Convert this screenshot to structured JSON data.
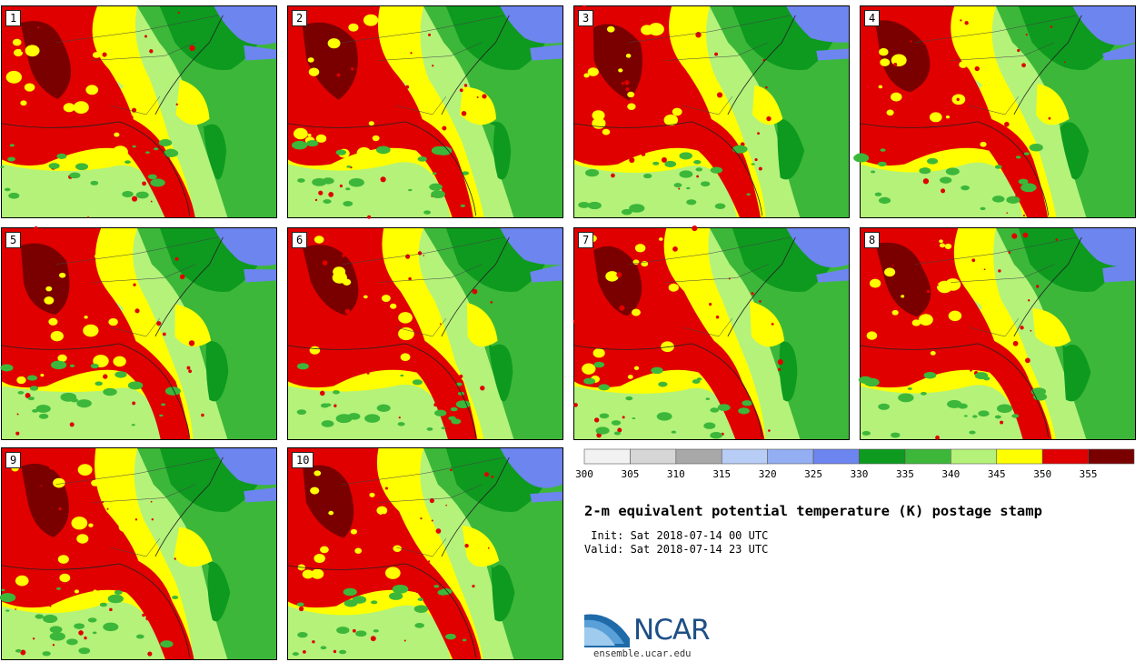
{
  "panels": [
    {
      "label": "1"
    },
    {
      "label": "2"
    },
    {
      "label": "3"
    },
    {
      "label": "4"
    },
    {
      "label": "5"
    },
    {
      "label": "6"
    },
    {
      "label": "7"
    },
    {
      "label": "8"
    },
    {
      "label": "9"
    },
    {
      "label": "10"
    }
  ],
  "colorbar": {
    "ticks": [
      "300",
      "305",
      "310",
      "315",
      "320",
      "325",
      "330",
      "335",
      "340",
      "345",
      "350",
      "355"
    ],
    "colors": [
      "#f2f2f2",
      "#d6d6d6",
      "#a8a8a8",
      "#b8cdf5",
      "#93aef2",
      "#6d85ee",
      "#0d9a1f",
      "#3cb73a",
      "#b4f27a",
      "#ffff00",
      "#e00000",
      "#7a0000"
    ]
  },
  "title": "2-m equivalent potential temperature (K) postage stamp",
  "init_line": " Init: Sat 2018-07-14 00 UTC",
  "valid_line": "Valid: Sat 2018-07-14 23 UTC",
  "logo": {
    "text": "NCAR",
    "url": "ensemble.ucar.edu"
  }
}
